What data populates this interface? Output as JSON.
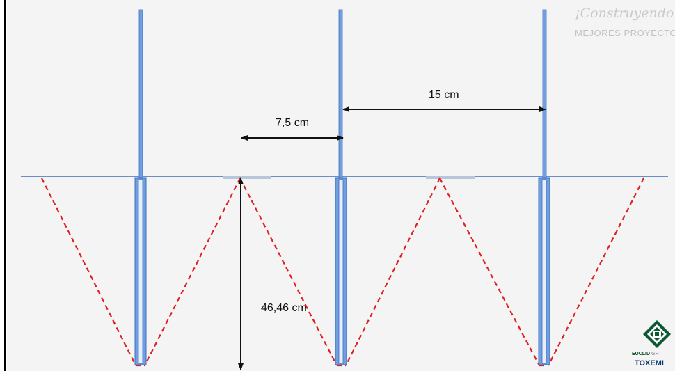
{
  "dimensions": {
    "spacing_label": "15 cm",
    "half_spacing_label": "7,5 cm",
    "depth_label": "46,46 cm"
  },
  "watermark": {
    "title": "¡Construyendo",
    "subtitle": "MEJORES PROYECTOS"
  },
  "logo": {
    "brand_line1_a": "EUCLID",
    "brand_line1_b": "GR",
    "brand_line2": "TOXEMI"
  },
  "colors": {
    "rod": "#6f9fe0",
    "rod_dark": "#3f6fbf",
    "spread_line": "#e02020",
    "dimension_arrow": "#111111",
    "logo_green": "#0b5a34"
  }
}
